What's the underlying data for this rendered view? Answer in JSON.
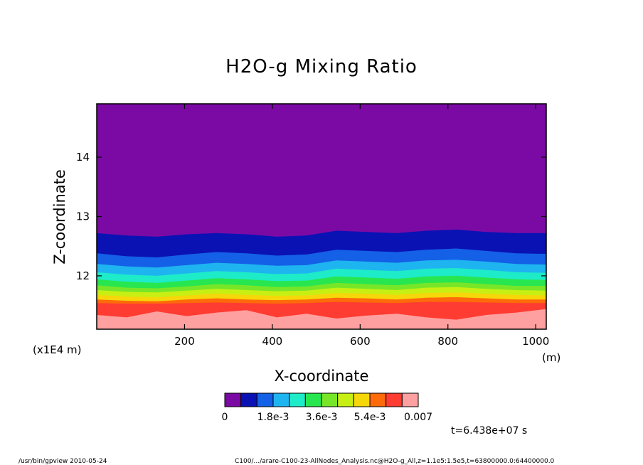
{
  "chart_data": {
    "type": "heatmap",
    "title": "H2O-g Mixing Ratio",
    "xlabel": "X-coordinate",
    "ylabel": "Z-coordinate",
    "x_unit": "(m)",
    "y_unit": "(x1E4 m)",
    "xlim": [
      0,
      1024
    ],
    "ylim": [
      11.1,
      14.9
    ],
    "x_ticks": [
      "200",
      "400",
      "600",
      "800",
      "1000"
    ],
    "x_tick_values": [
      200,
      400,
      600,
      800,
      1000
    ],
    "y_ticks": [
      "12",
      "13",
      "14"
    ],
    "y_tick_values": [
      12,
      13,
      14
    ],
    "colorbar": {
      "colors": [
        "#7b0aa5",
        "#0a12b4",
        "#1460e6",
        "#1eb4f0",
        "#1eebc8",
        "#28e650",
        "#78e628",
        "#c8ef14",
        "#f5d70a",
        "#ff6a0a",
        "#ff3c32",
        "#ffa0a0"
      ],
      "tick_labels": [
        "0",
        "1.8e-3",
        "3.6e-3",
        "5.4e-3",
        "0.007"
      ],
      "tick_values": [
        0,
        0.0018,
        0.0036,
        0.0054,
        0.007
      ],
      "levels": [
        0,
        0.0006,
        0.0012,
        0.0018,
        0.0024,
        0.003,
        0.0036,
        0.0042,
        0.0048,
        0.0054,
        0.006,
        0.0066,
        0.007
      ]
    },
    "contour_boundaries_z": [
      {
        "level": 0.0006,
        "z": [
          12.72,
          12.68,
          12.66,
          12.7,
          12.72,
          12.7,
          12.66,
          12.68,
          12.76,
          12.74,
          12.72,
          12.76,
          12.78,
          12.74,
          12.72,
          12.72
        ]
      },
      {
        "level": 0.0012,
        "z": [
          12.38,
          12.33,
          12.31,
          12.36,
          12.4,
          12.38,
          12.34,
          12.36,
          12.44,
          12.42,
          12.4,
          12.44,
          12.46,
          12.42,
          12.38,
          12.37
        ]
      },
      {
        "level": 0.0018,
        "z": [
          12.2,
          12.16,
          12.14,
          12.18,
          12.22,
          12.2,
          12.17,
          12.18,
          12.26,
          12.24,
          12.22,
          12.26,
          12.27,
          12.24,
          12.2,
          12.19
        ]
      },
      {
        "level": 0.0024,
        "z": [
          12.06,
          12.02,
          12.0,
          12.04,
          12.08,
          12.06,
          12.03,
          12.04,
          12.12,
          12.1,
          12.08,
          12.12,
          12.13,
          12.1,
          12.06,
          12.05
        ]
      },
      {
        "level": 0.003,
        "z": [
          11.94,
          11.9,
          11.88,
          11.92,
          11.96,
          11.94,
          11.91,
          11.92,
          11.99,
          11.97,
          11.95,
          11.99,
          12.0,
          11.97,
          11.94,
          11.93
        ]
      },
      {
        "level": 0.0036,
        "z": [
          11.84,
          11.8,
          11.79,
          11.82,
          11.86,
          11.84,
          11.81,
          11.82,
          11.88,
          11.86,
          11.84,
          11.88,
          11.89,
          11.86,
          11.83,
          11.83
        ]
      },
      {
        "level": 0.0042,
        "z": [
          11.76,
          11.73,
          11.72,
          11.75,
          11.78,
          11.76,
          11.74,
          11.75,
          11.8,
          11.78,
          11.76,
          11.8,
          11.81,
          11.78,
          11.76,
          11.75
        ]
      },
      {
        "level": 0.0048,
        "z": [
          11.68,
          11.65,
          11.64,
          11.67,
          11.7,
          11.68,
          11.66,
          11.67,
          11.71,
          11.7,
          11.68,
          11.71,
          11.72,
          11.7,
          11.68,
          11.67
        ]
      },
      {
        "level": 0.0054,
        "z": [
          11.6,
          11.58,
          11.57,
          11.6,
          11.62,
          11.6,
          11.59,
          11.6,
          11.63,
          11.62,
          11.6,
          11.63,
          11.64,
          11.62,
          11.6,
          11.6
        ]
      },
      {
        "level": 0.006,
        "z": [
          11.54,
          11.53,
          11.53,
          11.54,
          11.55,
          11.54,
          11.53,
          11.54,
          11.56,
          11.55,
          11.54,
          11.56,
          11.56,
          11.55,
          11.54,
          11.54
        ]
      },
      {
        "level": 0.0066,
        "z": [
          11.34,
          11.3,
          11.4,
          11.32,
          11.38,
          11.42,
          11.3,
          11.36,
          11.28,
          11.33,
          11.36,
          11.3,
          11.26,
          11.34,
          11.38,
          11.44
        ]
      }
    ],
    "x_samples": [
      0,
      68,
      137,
      205,
      273,
      341,
      410,
      478,
      546,
      614,
      683,
      751,
      819,
      887,
      956,
      1024
    ]
  },
  "time_label": "t=6.438e+07 s",
  "footer": {
    "left": "/usr/bin/gpview  2010-05-24",
    "right": "C100/.../arare-C100-23-AllNodes_Analysis.nc@H2O-g_All,z=1.1e5:1.5e5,t=63800000.0:64400000.0"
  }
}
